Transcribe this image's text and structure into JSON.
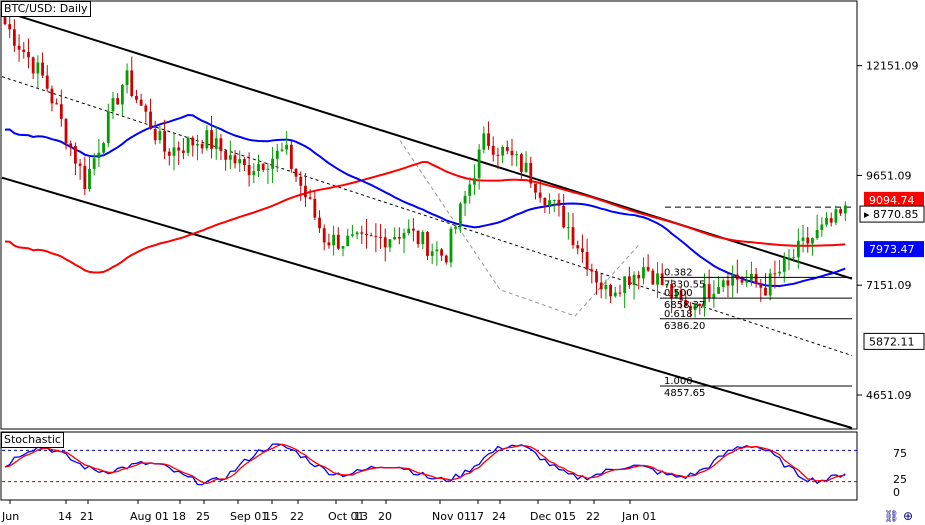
{
  "title": "BTC/USD: Daily",
  "stochastic_label": "Stochastic",
  "colors": {
    "bull": "#00a000",
    "bear": "#d00000",
    "sma100": "#0000ff",
    "sma200": "#ff0000",
    "channel": "#000000",
    "price_tag": "#ff0000",
    "sma100_tag": "#0000ff",
    "sma200_tag": "#ff0000"
  },
  "chart_data": [
    {
      "type": "candlestick",
      "title": "BTC/USD: Daily",
      "ylim": [
        3900,
        13600
      ],
      "y_ticks": [
        "12151.09",
        "9651.09",
        "7151.09",
        "4651.09"
      ],
      "x_tick_labels": [
        "Jun",
        "14",
        "21",
        "Aug 01",
        "18",
        "25",
        "Sep 01",
        "15",
        "22",
        "Oct 01",
        "13",
        "20",
        "Nov 01",
        "17",
        "24",
        "Dec 01",
        "15",
        "22",
        "Jan 01"
      ],
      "price_labels": [
        {
          "text": "9094.74",
          "kind": "sma200"
        },
        {
          "text": "8770.85",
          "kind": "current"
        },
        {
          "text": "7973.47",
          "kind": "sma100"
        },
        {
          "text": "5872.11",
          "kind": "plain"
        }
      ],
      "fibonacci": [
        {
          "ratio": "0.382",
          "price": "7330.55"
        },
        {
          "ratio": "0.500",
          "price": "6858.37"
        },
        {
          "ratio": "0.618",
          "price": "6386.20"
        },
        {
          "ratio": "1.000",
          "price": "4857.65"
        }
      ],
      "bars": 180,
      "key_closes": [
        13100,
        11800,
        9500,
        11900,
        10200,
        10500,
        9800,
        10200,
        8200,
        8100,
        8400,
        7800,
        10500,
        9800,
        8600,
        7000,
        7600,
        6600,
        7400,
        7100,
        8100,
        8800
      ]
    },
    {
      "type": "line",
      "title": "Stochastic",
      "ylim": [
        0,
        100
      ],
      "y_ticks": [
        "75",
        "25",
        "0"
      ],
      "levels": [
        80,
        20
      ]
    }
  ]
}
